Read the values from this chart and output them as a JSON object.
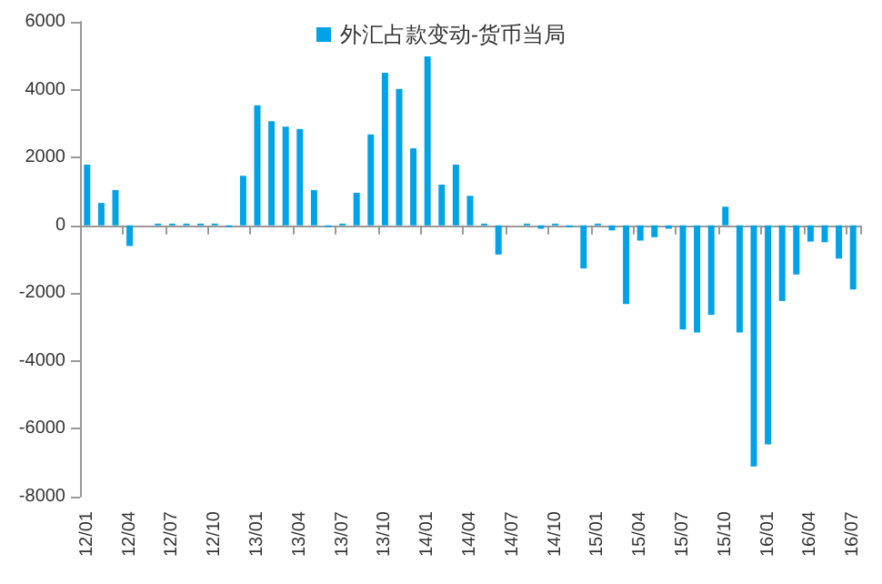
{
  "chart_data": {
    "type": "bar",
    "categories": [
      "12/01",
      null,
      null,
      "12/04",
      null,
      null,
      "12/07",
      null,
      null,
      "12/10",
      null,
      null,
      "13/01",
      null,
      null,
      "13/04",
      null,
      null,
      "13/07",
      null,
      null,
      "13/10",
      null,
      null,
      "14/01",
      null,
      null,
      "14/04",
      null,
      null,
      "14/07",
      null,
      null,
      "14/10",
      null,
      null,
      "15/01",
      null,
      null,
      "15/04",
      null,
      null,
      "15/07",
      null,
      null,
      "15/10",
      null,
      null,
      "16/01",
      null,
      null,
      "16/04",
      null,
      null,
      "16/07"
    ],
    "series": [
      {
        "name": "外汇占款变动-货币当局",
        "color": "#00a2e8",
        "values": [
          1790,
          660,
          1040,
          -610,
          0,
          50,
          50,
          50,
          50,
          50,
          -50,
          1460,
          3540,
          3070,
          2910,
          2840,
          1040,
          -50,
          50,
          960,
          2680,
          4500,
          4020,
          2270,
          4980,
          1200,
          1790,
          870,
          50,
          -860,
          0,
          50,
          -100,
          50,
          -50,
          -1270,
          50,
          -150,
          -2320,
          -450,
          -350,
          -100,
          -3070,
          -3160,
          -2640,
          550,
          -3160,
          -7110,
          -6460,
          -2230,
          -1450,
          -480,
          -500,
          -980,
          -1890
        ]
      }
    ],
    "ylim": [
      -8000,
      6000
    ],
    "yticks": [
      -8000,
      -6000,
      -4000,
      -2000,
      0,
      2000,
      4000,
      6000
    ],
    "legend": "top"
  }
}
